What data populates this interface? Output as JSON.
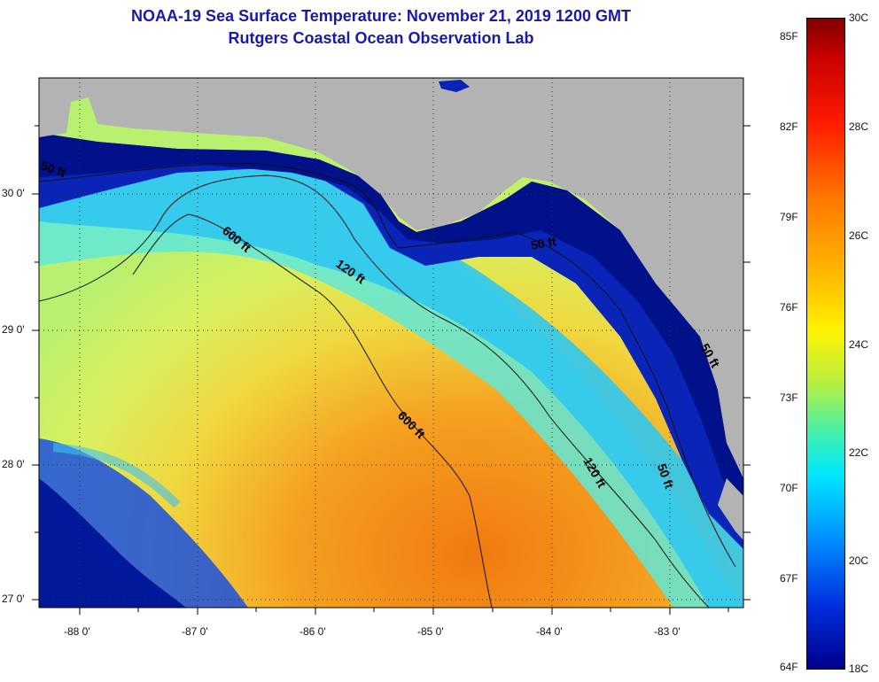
{
  "title": {
    "line1": "NOAA-19 Sea Surface Temperature:  November 21, 2019 1200 GMT",
    "line2": "Rutgers Coastal Ocean Observation Lab"
  },
  "map": {
    "lon_labels": [
      "-88 0'",
      "-87 0'",
      "-86 0'",
      "-85 0'",
      "-84 0'",
      "-83 0'"
    ],
    "lat_labels": [
      "30 0'",
      "29 0'",
      "28 0'",
      "27 0'"
    ],
    "contours": {
      "c50_west": "50 ft",
      "c50_east": "50 ft",
      "c50_south": "50 ft",
      "c50_se": "50 ft",
      "c120_north": "120 ft",
      "c120_south": "120 ft",
      "c600_north": "600 ft",
      "c600_south": "600 ft"
    },
    "colors": {
      "land": "#b3b3b3",
      "coast_deep_blue": "#00139a",
      "mid_cyan": "#40d8f0",
      "warm_yellow": "#f0e848",
      "warm_orange": "#f0a020",
      "title_blue": "#1a1aa8"
    }
  },
  "colorbar": {
    "fahrenheit": [
      "85F",
      "82F",
      "79F",
      "76F",
      "73F",
      "70F",
      "67F",
      "64F"
    ],
    "celsius": [
      "30C",
      "28C",
      "26C",
      "24C",
      "22C",
      "20C",
      "18C"
    ]
  }
}
